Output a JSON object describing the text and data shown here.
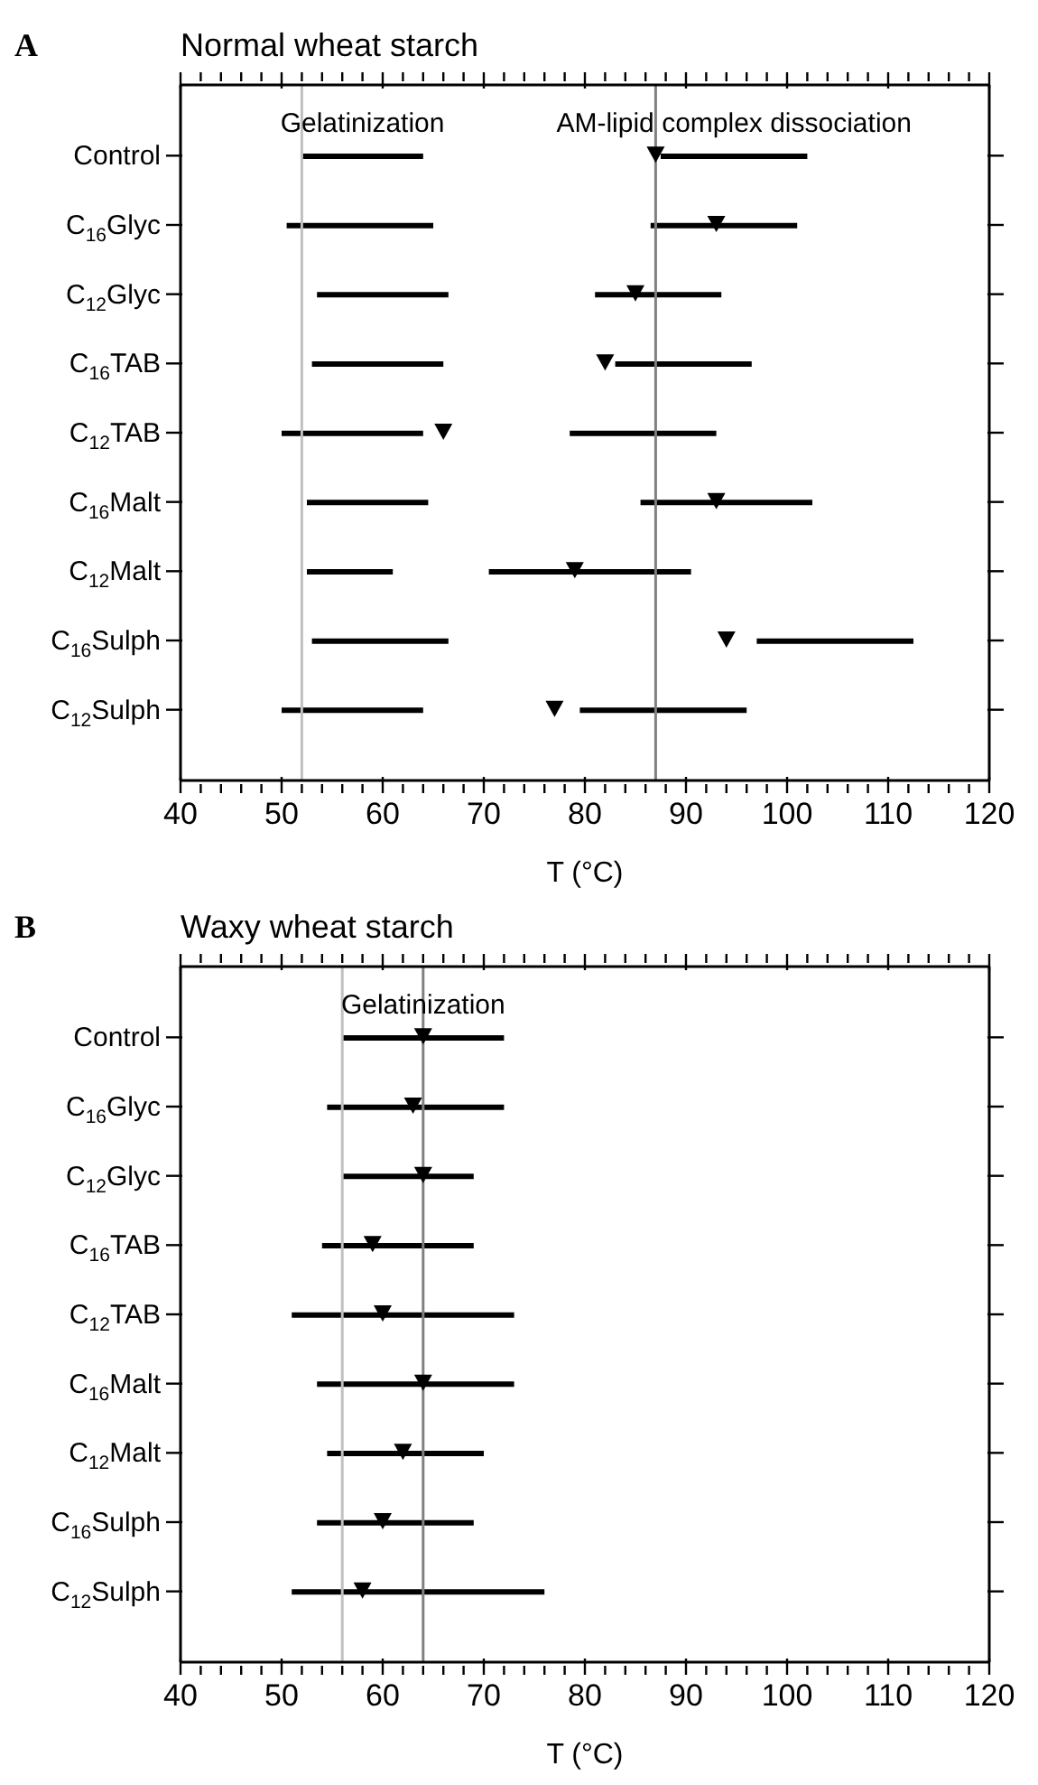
{
  "chart_data": [
    {
      "type": "bar",
      "orientation": "horizontal",
      "title": "Normal wheat starch",
      "xlabel": "T (°C)",
      "annotations": [
        "A"
      ],
      "legend": "top",
      "categories": [
        "Control",
        "C$_{16}$Glyc",
        "C$_{12}$Glyc",
        "C$_{16}$TAB",
        "C$_{12}$TAB",
        "C$_{16}$Malt",
        "C$_{12}$Malt",
        "C$_{16}$Sulph",
        "C$_{12}$Sulph"
      ],
      "series": [
        {
          "name": "Gelatinization",
          "color": "#000000",
          "base": [
            52,
            50.5,
            53.5,
            53,
            50,
            52.5,
            52.5,
            53,
            50
          ],
          "values": [
            12,
            14.5,
            13,
            13,
            14,
            12,
            8.5,
            13.5,
            14
          ]
        },
        {
          "name": "AM-lipid complex dissociation",
          "color": "#000000",
          "base": [
            87.5,
            86.5,
            81,
            83,
            78.5,
            85.5,
            70.5,
            97,
            79.5
          ],
          "values": [
            14.5,
            14.5,
            12.5,
            13.5,
            14.5,
            17,
            20,
            15.5,
            16.5
          ]
        },
        {
          "type": "scatter",
          "marker": "triangle",
          "color": "#000000",
          "values": [
            87,
            93,
            85,
            82,
            66,
            93,
            79,
            94,
            77
          ]
        }
      ],
      "xlim": [
        40,
        120
      ],
      "xticks": [
        40,
        {
          "value": 42,
          "label": null
        },
        {
          "value": 44,
          "label": null
        },
        {
          "value": 46,
          "label": null
        },
        {
          "value": 48,
          "label": null
        },
        50,
        {
          "value": 52,
          "label": null
        },
        {
          "value": 54,
          "label": null
        },
        {
          "value": 56,
          "label": null
        },
        {
          "value": 58,
          "label": null
        },
        60,
        {
          "value": 62,
          "label": null
        },
        {
          "value": 64,
          "label": null
        },
        {
          "value": 66,
          "label": null
        },
        {
          "value": 68,
          "label": null
        },
        70,
        {
          "value": 72,
          "label": null
        },
        {
          "value": 74,
          "label": null
        },
        {
          "value": 76,
          "label": null
        },
        {
          "value": 78,
          "label": null
        },
        80,
        {
          "value": 82,
          "label": null
        },
        {
          "value": 84,
          "label": null
        },
        {
          "value": 86,
          "label": null
        },
        {
          "value": 88,
          "label": null
        },
        90,
        {
          "value": 92,
          "label": null
        },
        {
          "value": 94,
          "label": null
        },
        {
          "value": 96,
          "label": null
        },
        {
          "value": 98,
          "label": null
        },
        100,
        {
          "value": 102,
          "label": null
        },
        {
          "value": 104,
          "label": null
        },
        {
          "value": 106,
          "label": null
        },
        {
          "value": 108,
          "label": null
        },
        110,
        {
          "value": 112,
          "label": null
        },
        {
          "value": 114,
          "label": null
        },
        {
          "value": 116,
          "label": null
        },
        {
          "value": 118,
          "label": null
        },
        120
      ],
      "ref_lines": [
        {
          "axis": "x",
          "value": 52,
          "color": "#c0c0c0"
        },
        {
          "axis": "x",
          "value": 87,
          "color": "#808080"
        }
      ]
    },
    {
      "type": "bar",
      "orientation": "horizontal",
      "title": "Waxy wheat starch",
      "xlabel": "T (°C)",
      "annotations": [
        "B"
      ],
      "legend": "top",
      "categories": [
        "Control",
        "C$_{16}$Glyc",
        "C$_{12}$Glyc",
        "C$_{16}$TAB",
        "C$_{12}$TAB",
        "C$_{16}$Malt",
        "C$_{12}$Malt",
        "C$_{16}$Sulph",
        "C$_{12}$Sulph"
      ],
      "series": [
        {
          "name": "Gelatinization",
          "color": "#000000",
          "base": [
            56,
            54.5,
            56,
            54,
            51,
            53.5,
            54.5,
            53.5,
            51
          ],
          "values": [
            16,
            17.5,
            13,
            15,
            22,
            19.5,
            15.5,
            15.5,
            25
          ]
        },
        {
          "type": "scatter",
          "marker": "triangle",
          "color": "#000000",
          "values": [
            64,
            63,
            64,
            59,
            60,
            64,
            62,
            60,
            58
          ]
        }
      ],
      "xlim": [
        40,
        120
      ],
      "xticks": [
        40,
        {
          "value": 42,
          "label": null
        },
        {
          "value": 44,
          "label": null
        },
        {
          "value": 46,
          "label": null
        },
        {
          "value": 48,
          "label": null
        },
        50,
        {
          "value": 52,
          "label": null
        },
        {
          "value": 54,
          "label": null
        },
        {
          "value": 56,
          "label": null
        },
        {
          "value": 58,
          "label": null
        },
        60,
        {
          "value": 62,
          "label": null
        },
        {
          "value": 64,
          "label": null
        },
        {
          "value": 66,
          "label": null
        },
        {
          "value": 68,
          "label": null
        },
        70,
        {
          "value": 72,
          "label": null
        },
        {
          "value": 74,
          "label": null
        },
        {
          "value": 76,
          "label": null
        },
        {
          "value": 78,
          "label": null
        },
        80,
        {
          "value": 82,
          "label": null
        },
        {
          "value": 84,
          "label": null
        },
        {
          "value": 86,
          "label": null
        },
        {
          "value": 88,
          "label": null
        },
        90,
        {
          "value": 92,
          "label": null
        },
        {
          "value": 94,
          "label": null
        },
        {
          "value": 96,
          "label": null
        },
        {
          "value": 98,
          "label": null
        },
        100,
        {
          "value": 102,
          "label": null
        },
        {
          "value": 104,
          "label": null
        },
        {
          "value": 106,
          "label": null
        },
        {
          "value": 108,
          "label": null
        },
        110,
        {
          "value": 112,
          "label": null
        },
        {
          "value": 114,
          "label": null
        },
        {
          "value": 116,
          "label": null
        },
        {
          "value": 118,
          "label": null
        },
        120
      ],
      "ref_lines": [
        {
          "axis": "x",
          "value": 56,
          "color": "#c0c0c0"
        },
        {
          "axis": "x",
          "value": 64,
          "color": "#808080"
        }
      ]
    }
  ]
}
